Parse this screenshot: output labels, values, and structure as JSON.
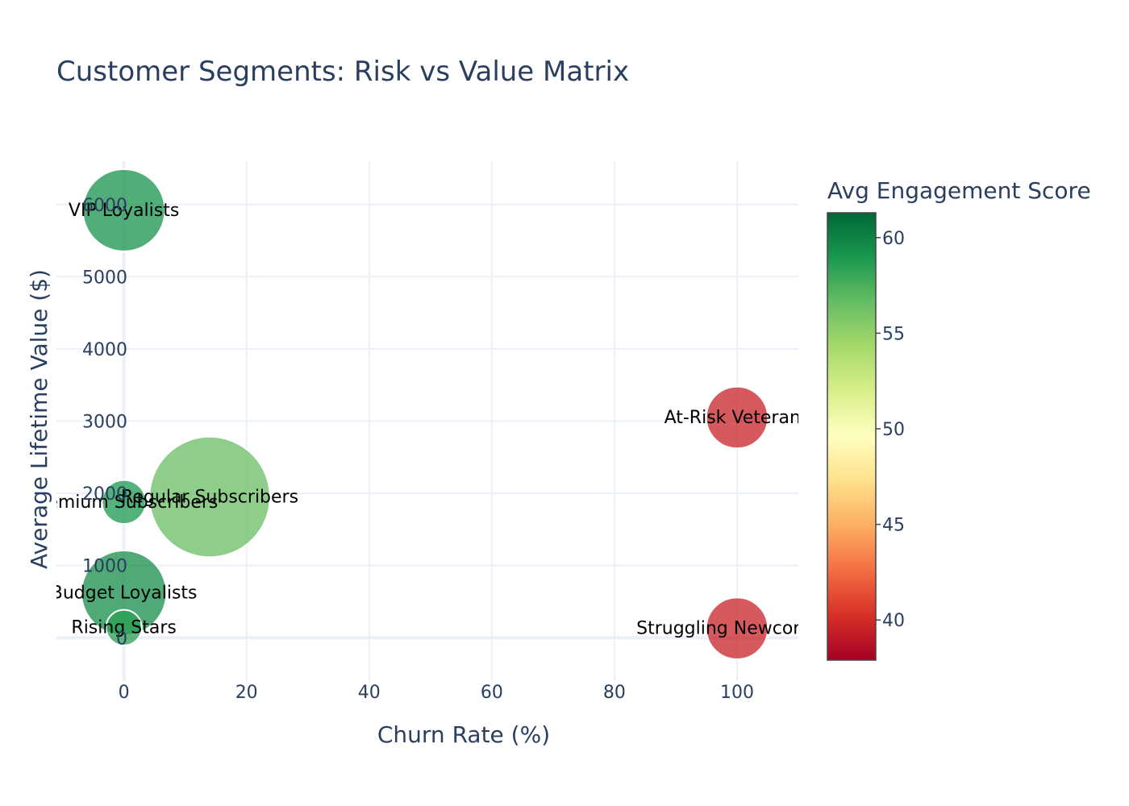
{
  "chart_data": {
    "type": "scatter",
    "title": "Customer Segments: Risk vs Value Matrix",
    "xlabel": "Churn Rate (%)",
    "ylabel": "Average Lifetime Value ($)",
    "xlim": [
      -11,
      110
    ],
    "ylim": [
      -600,
      6600
    ],
    "xticks": [
      0,
      20,
      40,
      60,
      80,
      100
    ],
    "yticks": [
      0,
      1000,
      2000,
      3000,
      4000,
      5000,
      6000
    ],
    "grid": true,
    "points": [
      {
        "label": "VIP Loyalists",
        "x": 0,
        "y": 5920,
        "engagement": 59.2,
        "size": 3.0
      },
      {
        "label": "At-Risk Veterans",
        "x": 100,
        "y": 3050,
        "engagement": 39.5,
        "size": 2.25
      },
      {
        "label": "Regular Subscribers",
        "x": 14,
        "y": 1950,
        "engagement": 56.5,
        "size": 4.4
      },
      {
        "label": "Premium Subscribers",
        "x": 0,
        "y": 1880,
        "engagement": 59.0,
        "size": 1.6
      },
      {
        "label": "Budget Loyalists",
        "x": 0,
        "y": 620,
        "engagement": 59.5,
        "size": 3.1
      },
      {
        "label": "Rising Stars",
        "x": 0,
        "y": 140,
        "engagement": 58.5,
        "size": 1.3
      },
      {
        "label": "Struggling Newcomers",
        "x": 100,
        "y": 130,
        "engagement": 39.5,
        "size": 2.25
      }
    ],
    "colorbar": {
      "title": "Avg Engagement Score",
      "colorscale": "RdYlGn",
      "range": [
        37.9,
        61.3
      ],
      "ticks": [
        40,
        45,
        50,
        55,
        60
      ]
    }
  }
}
